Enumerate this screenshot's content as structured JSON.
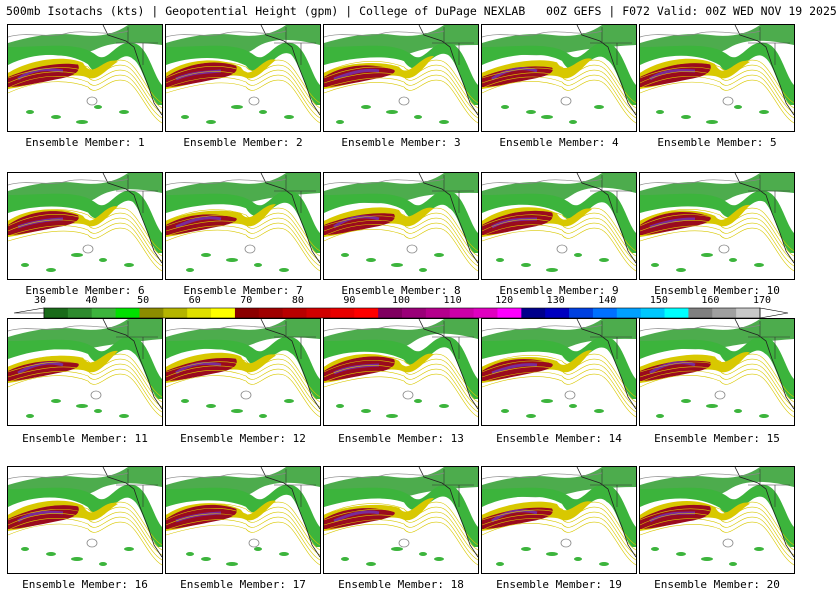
{
  "header": {
    "title": "500mb Isotachs (kts) | Geopotential Height (gpm) | College of DuPage NEXLAB   00Z GEFS | F072 Valid: 00Z WED NOV 19 2025"
  },
  "members": [
    {
      "label": "Ensemble Member: 1"
    },
    {
      "label": "Ensemble Member: 2"
    },
    {
      "label": "Ensemble Member: 3"
    },
    {
      "label": "Ensemble Member: 4"
    },
    {
      "label": "Ensemble Member: 5"
    },
    {
      "label": "Ensemble Member: 6"
    },
    {
      "label": "Ensemble Member: 7"
    },
    {
      "label": "Ensemble Member: 8"
    },
    {
      "label": "Ensemble Member: 9"
    },
    {
      "label": "Ensemble Member: 10"
    },
    {
      "label": "Ensemble Member: 11"
    },
    {
      "label": "Ensemble Member: 12"
    },
    {
      "label": "Ensemble Member: 13"
    },
    {
      "label": "Ensemble Member: 14"
    },
    {
      "label": "Ensemble Member: 15"
    },
    {
      "label": "Ensemble Member: 16"
    },
    {
      "label": "Ensemble Member: 17"
    },
    {
      "label": "Ensemble Member: 18"
    },
    {
      "label": "Ensemble Member: 19"
    },
    {
      "label": "Ensemble Member: 20"
    }
  ],
  "scale": {
    "labels": [
      "30",
      "40",
      "50",
      "60",
      "70",
      "80",
      "90",
      "100",
      "110",
      "120",
      "130",
      "140",
      "150",
      "160",
      "170"
    ],
    "colors": [
      "#1a6b1a",
      "#2e8b2e",
      "#3cb43c",
      "#00e000",
      "#8c8c00",
      "#b4b400",
      "#e0e000",
      "#ffff00",
      "#8b0000",
      "#a00000",
      "#b80000",
      "#d00000",
      "#e80000",
      "#ff0000",
      "#800060",
      "#9a0078",
      "#b4008c",
      "#cc00a8",
      "#e000c0",
      "#ff00ff",
      "#00008b",
      "#0000c0",
      "#0040e0",
      "#0070ff",
      "#00a0ff",
      "#00c8ff",
      "#00ffff",
      "#808080",
      "#a0a0a0",
      "#c8c8c8"
    ]
  }
}
